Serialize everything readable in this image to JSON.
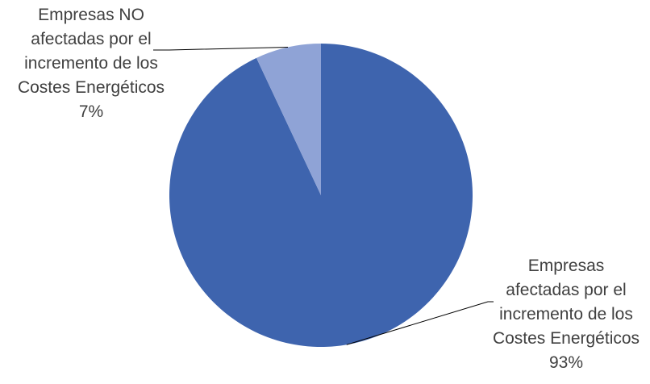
{
  "chart_data": {
    "type": "pie",
    "slices": [
      {
        "name_lines": [
          "Empresas",
          "afectadas por el",
          "incremento de los",
          "Costes Energéticos"
        ],
        "value": 93,
        "label": "93%",
        "color": "#3E64AE"
      },
      {
        "name_lines": [
          "Empresas NO",
          "afectadas por el",
          "incremento de los",
          "Costes Energéticos"
        ],
        "value": 7,
        "label": "7%",
        "color": "#8FA3D6"
      }
    ],
    "start": "12 o'clock",
    "direction": "clockwise",
    "legend": "none",
    "title": ""
  }
}
